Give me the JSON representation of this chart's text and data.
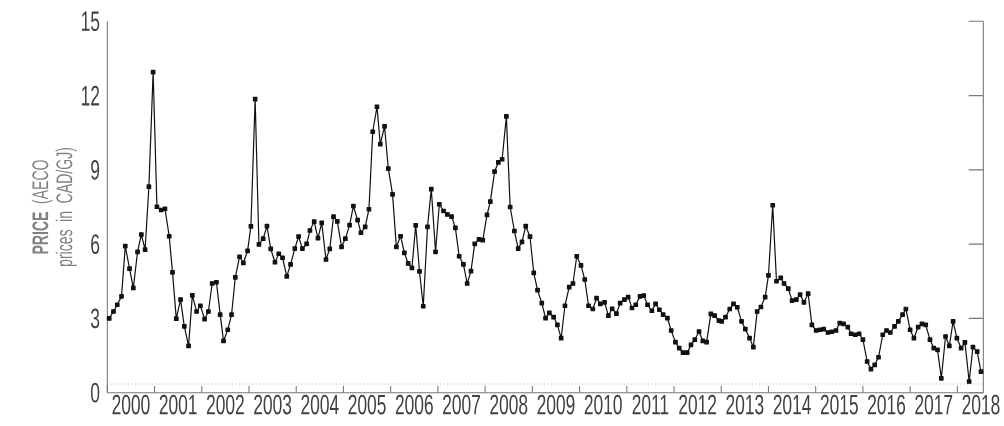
{
  "chart_data": {
    "type": "line",
    "ylabel": "**PRICE** (AECO prices in CAD/GJ)",
    "x": [
      2000.04,
      2000.13,
      2000.21,
      2000.3,
      2000.38,
      2000.47,
      2000.55,
      2000.64,
      2000.72,
      2000.8,
      2000.88,
      2000.97,
      2001.05,
      2001.14,
      2001.22,
      2001.31,
      2001.38,
      2001.46,
      2001.55,
      2001.63,
      2001.72,
      2001.8,
      2001.89,
      2001.97,
      2002.06,
      2002.14,
      2002.22,
      2002.31,
      2002.39,
      2002.46,
      2002.55,
      2002.63,
      2002.71,
      2002.8,
      2002.88,
      2002.97,
      2003.04,
      2003.13,
      2003.21,
      2003.3,
      2003.38,
      2003.46,
      2003.55,
      2003.63,
      2003.71,
      2003.8,
      2003.88,
      2003.97,
      2004.05,
      2004.13,
      2004.22,
      2004.29,
      2004.38,
      2004.46,
      2004.54,
      2004.63,
      2004.71,
      2004.79,
      2004.87,
      2004.96,
      2005.04,
      2005.13,
      2005.21,
      2005.3,
      2005.37,
      2005.46,
      2005.54,
      2005.62,
      2005.71,
      2005.78,
      2005.87,
      2005.95,
      2006.04,
      2006.12,
      2006.21,
      2006.29,
      2006.37,
      2006.45,
      2006.53,
      2006.61,
      2006.69,
      2006.78,
      2006.86,
      2006.95,
      2007.03,
      2007.12,
      2007.2,
      2007.29,
      2007.37,
      2007.45,
      2007.54,
      2007.62,
      2007.7,
      2007.78,
      2007.87,
      2007.95,
      2008.04,
      2008.11,
      2008.2,
      2008.28,
      2008.36,
      2008.45,
      2008.53,
      2008.62,
      2008.7,
      2008.78,
      2008.86,
      2008.95,
      2009.03,
      2009.11,
      2009.2,
      2009.28,
      2009.36,
      2009.45,
      2009.53,
      2009.61,
      2009.69,
      2009.78,
      2009.86,
      2009.94,
      2010.03,
      2010.11,
      2010.19,
      2010.28,
      2010.36,
      2010.44,
      2010.53,
      2010.61,
      2010.69,
      2010.78,
      2010.86,
      2010.95,
      2011.03,
      2011.11,
      2011.19,
      2011.28,
      2011.36,
      2011.44,
      2011.53,
      2011.61,
      2011.69,
      2011.77,
      2011.86,
      2011.94,
      2012.03,
      2012.11,
      2012.19,
      2012.28,
      2012.36,
      2012.44,
      2012.53,
      2012.61,
      2012.69,
      2012.78,
      2012.86,
      2012.95,
      2013.01,
      2013.09,
      2013.18,
      2013.26,
      2013.34,
      2013.43,
      2013.51,
      2013.6,
      2013.68,
      2013.76,
      2013.84,
      2013.93,
      2014.0,
      2014.09,
      2014.17,
      2014.26,
      2014.33,
      2014.42,
      2014.5,
      2014.59,
      2014.67,
      2014.75,
      2014.84,
      2014.92,
      2015.01,
      2015.09,
      2015.17,
      2015.26,
      2015.34,
      2015.43,
      2015.51,
      2015.59,
      2015.68,
      2015.75,
      2015.84,
      2015.92,
      2016.0,
      2016.09,
      2016.17,
      2016.25,
      2016.33,
      2016.42,
      2016.5,
      2016.58,
      2016.67,
      2016.75,
      2016.84,
      2016.91,
      2017.0,
      2017.08,
      2017.17,
      2017.25,
      2017.33,
      2017.42,
      2017.5,
      2017.58,
      2017.66,
      2017.75,
      2017.83,
      2017.91,
      2017.99,
      2018.08,
      2018.16,
      2018.25,
      2018.33,
      2018.42,
      2018.5
    ],
    "series": [
      {
        "color": "#111111",
        "values": [
          3.0,
          3.28,
          3.55,
          3.89,
          5.92,
          5.01,
          4.23,
          5.69,
          6.39,
          5.78,
          8.32,
          12.95,
          7.51,
          7.38,
          7.43,
          6.32,
          4.86,
          2.99,
          3.76,
          2.68,
          1.89,
          3.93,
          3.28,
          3.51,
          2.97,
          3.28,
          4.41,
          4.46,
          3.15,
          2.09,
          2.54,
          3.15,
          4.66,
          5.49,
          5.24,
          5.73,
          6.72,
          11.86,
          5.99,
          6.22,
          6.73,
          5.81,
          5.27,
          5.61,
          5.45,
          4.7,
          5.18,
          5.82,
          6.31,
          5.82,
          6.01,
          6.55,
          6.91,
          6.24,
          6.86,
          5.38,
          5.81,
          7.11,
          6.92,
          5.89,
          6.22,
          6.77,
          7.54,
          6.97,
          6.46,
          6.7,
          7.41,
          10.54,
          11.55,
          10.04,
          10.76,
          9.05,
          8.01,
          5.89,
          6.32,
          5.65,
          5.22,
          5.04,
          6.76,
          4.9,
          3.49,
          6.7,
          8.22,
          5.69,
          7.61,
          7.34,
          7.2,
          7.11,
          6.66,
          5.51,
          5.18,
          4.41,
          4.91,
          6.01,
          6.19,
          6.16,
          7.18,
          7.72,
          8.93,
          9.3,
          9.43,
          11.16,
          7.5,
          6.53,
          5.82,
          6.09,
          6.73,
          6.3,
          4.84,
          4.14,
          3.62,
          3.01,
          3.22,
          3.05,
          2.74,
          2.2,
          3.51,
          4.26,
          4.41,
          5.51,
          5.14,
          4.57,
          3.51,
          3.38,
          3.82,
          3.59,
          3.65,
          3.11,
          3.39,
          3.19,
          3.62,
          3.76,
          3.86,
          3.42,
          3.55,
          3.89,
          3.92,
          3.55,
          3.31,
          3.59,
          3.35,
          3.15,
          3.01,
          2.51,
          2.04,
          1.8,
          1.62,
          1.62,
          1.93,
          2.14,
          2.47,
          2.09,
          2.04,
          3.18,
          3.11,
          2.91,
          2.88,
          3.05,
          3.38,
          3.59,
          3.45,
          2.88,
          2.57,
          2.2,
          1.84,
          3.28,
          3.46,
          3.86,
          4.74,
          7.57,
          4.5,
          4.64,
          4.41,
          4.2,
          3.72,
          3.76,
          3.96,
          3.65,
          4.0,
          2.74,
          2.51,
          2.54,
          2.57,
          2.43,
          2.46,
          2.51,
          2.81,
          2.78,
          2.65,
          2.38,
          2.34,
          2.38,
          2.14,
          1.26,
          0.95,
          1.12,
          1.43,
          2.34,
          2.51,
          2.43,
          2.68,
          2.88,
          3.15,
          3.38,
          2.54,
          2.2,
          2.65,
          2.78,
          2.74,
          2.14,
          1.8,
          1.73,
          0.58,
          2.27,
          1.89,
          2.88,
          2.2,
          1.8,
          2.03,
          0.45,
          1.84,
          1.66,
          0.85
        ]
      }
    ],
    "marker": "square",
    "line_style": "solid",
    "xlim": [
      2000,
      2018.55
    ],
    "ylim": [
      0,
      15
    ],
    "xticks": [
      {
        "value": 2000,
        "label": null
      },
      {
        "value": 2000.5,
        "label": "2000"
      },
      {
        "value": 2001,
        "label": null
      },
      {
        "value": 2001.5,
        "label": "2001"
      },
      {
        "value": 2002,
        "label": null
      },
      {
        "value": 2002.5,
        "label": "2002"
      },
      {
        "value": 2003,
        "label": null
      },
      {
        "value": 2003.5,
        "label": "2003"
      },
      {
        "value": 2004,
        "label": null
      },
      {
        "value": 2004.5,
        "label": "2004"
      },
      {
        "value": 2005,
        "label": null
      },
      {
        "value": 2005.5,
        "label": "2005"
      },
      {
        "value": 2006,
        "label": null
      },
      {
        "value": 2006.5,
        "label": "2006"
      },
      {
        "value": 2007,
        "label": null
      },
      {
        "value": 2007.5,
        "label": "2007"
      },
      {
        "value": 2008,
        "label": null
      },
      {
        "value": 2008.5,
        "label": "2008"
      },
      {
        "value": 2009,
        "label": null
      },
      {
        "value": 2009.5,
        "label": "2009"
      },
      {
        "value": 2010,
        "label": null
      },
      {
        "value": 2010.5,
        "label": "2010"
      },
      {
        "value": 2011,
        "label": null
      },
      {
        "value": 2011.5,
        "label": "2011"
      },
      {
        "value": 2012,
        "label": null
      },
      {
        "value": 2012.5,
        "label": "2012"
      },
      {
        "value": 2013,
        "label": null
      },
      {
        "value": 2013.5,
        "label": "2013"
      },
      {
        "value": 2014,
        "label": null
      },
      {
        "value": 2014.5,
        "label": "2014"
      },
      {
        "value": 2015,
        "label": null
      },
      {
        "value": 2015.5,
        "label": "2015"
      },
      {
        "value": 2016,
        "label": null
      },
      {
        "value": 2016.5,
        "label": "2016"
      },
      {
        "value": 2017,
        "label": null
      },
      {
        "value": 2017.5,
        "label": "2017"
      },
      {
        "value": 2018,
        "label": null
      },
      {
        "value": 2018.5,
        "label": "2018"
      }
    ],
    "yticks": [
      0,
      3,
      6,
      9,
      12,
      15
    ],
    "ref_lines": [
      {
        "axis": "y",
        "value": 0.35,
        "color": "#888888",
        "line_style": "dotted"
      }
    ]
  }
}
